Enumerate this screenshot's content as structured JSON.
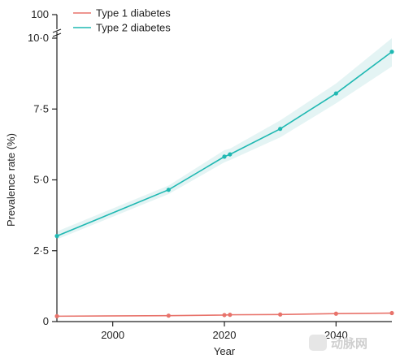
{
  "chart_data": {
    "type": "line",
    "xlabel": "Year",
    "ylabel": "Prevalence rate (%)",
    "xlim": [
      1990,
      2050
    ],
    "ylim": [
      0,
      10.5
    ],
    "x_ticks": [
      2000,
      2020,
      2040
    ],
    "x_tick_labels": [
      "2000",
      "2020",
      "2040"
    ],
    "y_ticks": [
      0,
      2.5,
      5.0,
      7.5,
      10.0
    ],
    "y_tick_labels": [
      "0",
      "2·5",
      "5·0",
      "7·5",
      "10·0"
    ],
    "y_axis_break_label": "100",
    "series": [
      {
        "name": "Type 1 diabetes",
        "color": "#e8736b",
        "x": [
          1990,
          2010,
          2020,
          2021,
          2030,
          2040,
          2050
        ],
        "values": [
          0.19,
          0.21,
          0.23,
          0.24,
          0.25,
          0.28,
          0.3
        ],
        "lower": [
          0.18,
          0.2,
          0.22,
          0.23,
          0.24,
          0.26,
          0.28
        ],
        "upper": [
          0.2,
          0.22,
          0.24,
          0.25,
          0.26,
          0.3,
          0.32
        ]
      },
      {
        "name": "Type 2 diabetes",
        "color": "#1fb8b2",
        "band_color": "#e4f4f4",
        "x": [
          1990,
          2010,
          2020,
          2021,
          2030,
          2040,
          2050
        ],
        "values": [
          3.02,
          4.65,
          5.82,
          5.9,
          6.8,
          8.05,
          9.52
        ],
        "lower": [
          2.9,
          4.5,
          5.62,
          5.7,
          6.5,
          7.7,
          9.0
        ],
        "upper": [
          3.18,
          4.8,
          6.05,
          6.1,
          7.1,
          8.4,
          10.0
        ]
      }
    ],
    "legend": {
      "position": "top-left"
    },
    "grid": false
  },
  "watermark": {
    "text": "动脉网"
  }
}
